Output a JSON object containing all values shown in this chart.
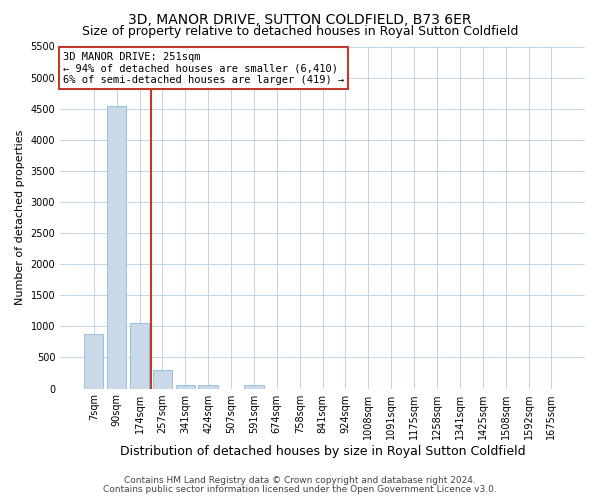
{
  "title": "3D, MANOR DRIVE, SUTTON COLDFIELD, B73 6ER",
  "subtitle": "Size of property relative to detached houses in Royal Sutton Coldfield",
  "xlabel": "Distribution of detached houses by size in Royal Sutton Coldfield",
  "ylabel": "Number of detached properties",
  "footnote1": "Contains HM Land Registry data © Crown copyright and database right 2024.",
  "footnote2": "Contains public sector information licensed under the Open Government Licence v3.0.",
  "bar_color": "#c9d9e8",
  "bar_edge_color": "#7bafd4",
  "vline_color": "#c0392b",
  "vline_x_index": 2.5,
  "annotation_text": "3D MANOR DRIVE: 251sqm\n← 94% of detached houses are smaller (6,410)\n6% of semi-detached houses are larger (419) →",
  "annotation_box_color": "#c0392b",
  "ylim": [
    0,
    5500
  ],
  "yticks": [
    0,
    500,
    1000,
    1500,
    2000,
    2500,
    3000,
    3500,
    4000,
    4500,
    5000,
    5500
  ],
  "categories": [
    "7sqm",
    "90sqm",
    "174sqm",
    "257sqm",
    "341sqm",
    "424sqm",
    "507sqm",
    "591sqm",
    "674sqm",
    "758sqm",
    "841sqm",
    "924sqm",
    "1008sqm",
    "1091sqm",
    "1175sqm",
    "1258sqm",
    "1341sqm",
    "1425sqm",
    "1508sqm",
    "1592sqm",
    "1675sqm"
  ],
  "values": [
    880,
    4540,
    1060,
    295,
    65,
    55,
    0,
    55,
    0,
    0,
    0,
    0,
    0,
    0,
    0,
    0,
    0,
    0,
    0,
    0,
    0
  ],
  "bg_color": "#ffffff",
  "grid_color": "#b8cfe0",
  "title_fontsize": 10,
  "subtitle_fontsize": 9,
  "tick_fontsize": 7,
  "ylabel_fontsize": 8,
  "xlabel_fontsize": 9,
  "annotation_fontsize": 7.5,
  "footnote_fontsize": 6.5
}
